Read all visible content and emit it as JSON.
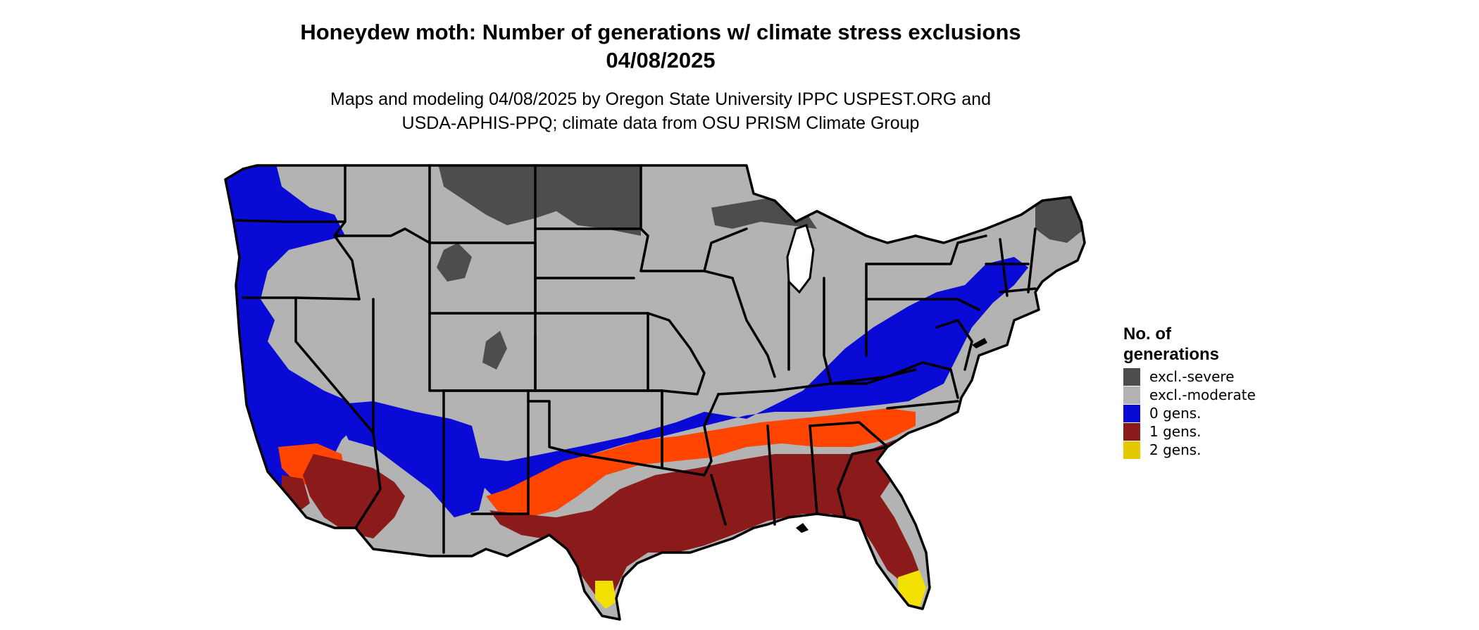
{
  "title": {
    "line1": "Honeydew moth: Number of generations w/ climate stress exclusions",
    "line2": "04/08/2025"
  },
  "subtitle": {
    "line1": "Maps and modeling 04/08/2025 by Oregon State University IPPC USPEST.ORG and",
    "line2": "USDA-APHIS-PPQ; climate data from OSU PRISM Climate Group"
  },
  "legend": {
    "title_line1": "No. of",
    "title_line2": "generations",
    "items": [
      {
        "label": "excl.-severe",
        "color": "#4d4d4d"
      },
      {
        "label": "excl.-moderate",
        "color": "#b3b3b3"
      },
      {
        "label": "0 gens.",
        "color": "#0a0ad6"
      },
      {
        "label": "1 gens.",
        "color": "#8b1a1a"
      },
      {
        "label": "2 gens.",
        "color": "#e6c800"
      }
    ]
  },
  "map_colors": {
    "severe": "#4d4d4d",
    "moderate": "#b3b3b3",
    "zero": "#0a0ad6",
    "one": "#8b1a1a",
    "one_transition": "#ff4500",
    "two": "#f2e100",
    "water": "#ffffff",
    "border": "#000000"
  }
}
